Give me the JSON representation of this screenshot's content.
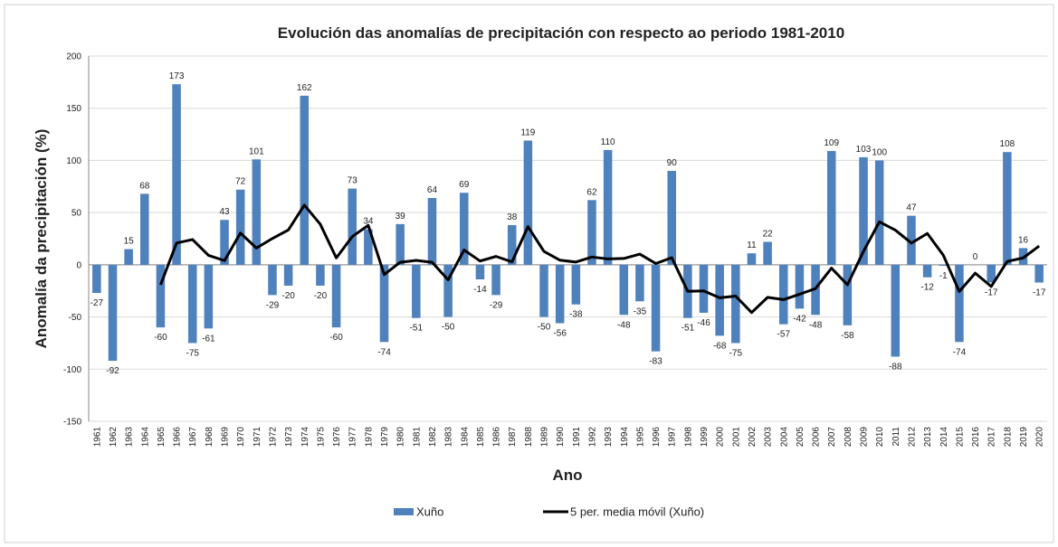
{
  "chart_data": {
    "type": "bar-line",
    "title": "Evolución das anomalías de precipitación con respecto ao periodo 1981-2010",
    "x_label": "Ano",
    "y_label": "Anomalía da precipitación (%)",
    "categories": [
      "1961",
      "1962",
      "1963",
      "1964",
      "1965",
      "1966",
      "1967",
      "1968",
      "1969",
      "1970",
      "1971",
      "1972",
      "1973",
      "1974",
      "1975",
      "1976",
      "1977",
      "1978",
      "1979",
      "1980",
      "1981",
      "1982",
      "1983",
      "1984",
      "1985",
      "1986",
      "1987",
      "1988",
      "1989",
      "1990",
      "1991",
      "1992",
      "1993",
      "1994",
      "1995",
      "1996",
      "1997",
      "1998",
      "1999",
      "2000",
      "2001",
      "2002",
      "2003",
      "2004",
      "2005",
      "2006",
      "2007",
      "2008",
      "2009",
      "2010",
      "2011",
      "2012",
      "2013",
      "2014",
      "2015",
      "2016",
      "2017",
      "2018",
      "2019",
      "2020"
    ],
    "series": [
      {
        "name": "Xuño",
        "type": "bar",
        "color": "#4f81bd",
        "show_labels": true,
        "values": [
          -27,
          -92,
          15,
          68,
          -60,
          173,
          -75,
          -61,
          43,
          72,
          101,
          -29,
          -20,
          162,
          -20,
          -60,
          73,
          34,
          -74,
          39,
          -51,
          64,
          -50,
          69,
          -14,
          -29,
          38,
          119,
          -50,
          -56,
          -38,
          62,
          110,
          -48,
          -35,
          -83,
          90,
          -51,
          -46,
          -68,
          -75,
          11,
          22,
          -57,
          -42,
          -48,
          109,
          -58,
          103,
          100,
          -88,
          47,
          -12,
          -1,
          -74,
          0,
          -17,
          108,
          16,
          -17
        ]
      },
      {
        "name": "5 per. media móvil (Xuño)",
        "type": "line",
        "color": "#000000",
        "values": [
          null,
          null,
          null,
          null,
          -19.2,
          20.8,
          24.2,
          9,
          4,
          30.4,
          16,
          25.2,
          33.4,
          57.2,
          38.8,
          6.6,
          27,
          37.8,
          -9.4,
          2.4,
          4.2,
          2.4,
          -14.4,
          14.2,
          3.6,
          8,
          2.8,
          36.6,
          12.8,
          4.4,
          2.6,
          7.4,
          5.6,
          6,
          10.2,
          1.2,
          6.8,
          -25.4,
          -25,
          -31.6,
          -30,
          -45.8,
          -31.2,
          -33.4,
          -28.2,
          -22.8,
          -3.2,
          -19.2,
          12.8,
          41.2,
          33.2,
          20.8,
          30,
          9.2,
          -25.6,
          -8,
          -20.8,
          3.2,
          6.6,
          18
        ]
      }
    ],
    "ylim": [
      -150,
      200
    ],
    "yticks": [
      -150,
      -100,
      -50,
      0,
      50,
      100,
      150,
      200
    ],
    "grid": true,
    "legend": "bottom"
  }
}
